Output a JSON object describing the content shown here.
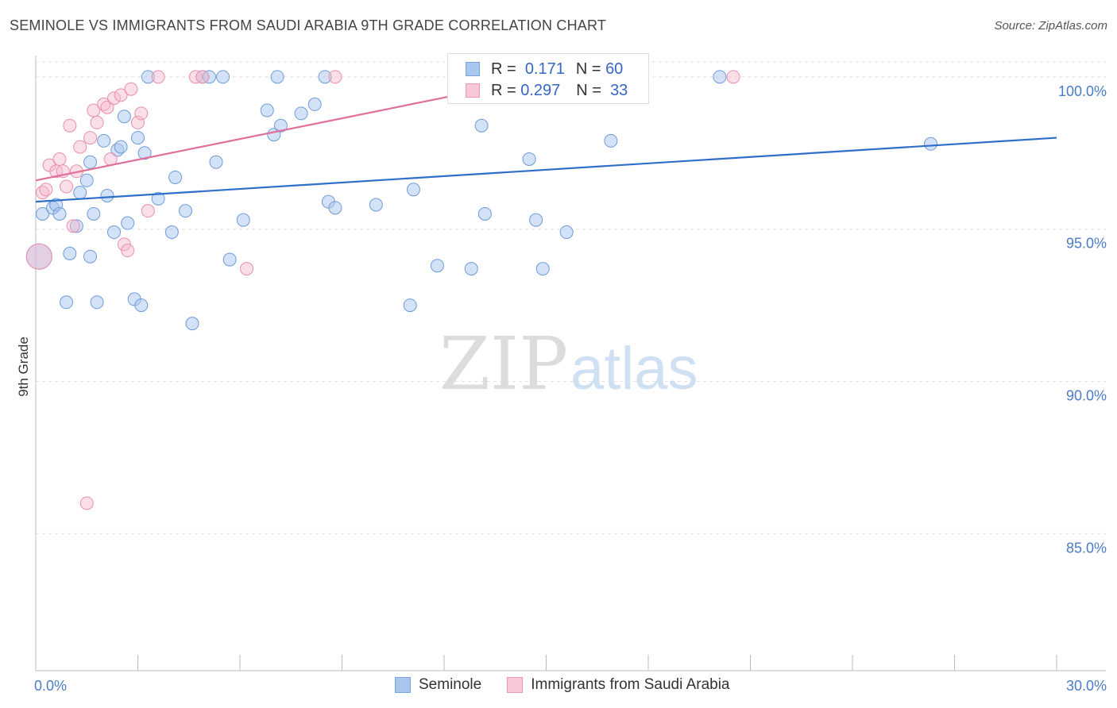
{
  "title": "SEMINOLE VS IMMIGRANTS FROM SAUDI ARABIA 9TH GRADE CORRELATION CHART",
  "source": "Source: ZipAtlas.com",
  "watermark": {
    "zip": "ZIP",
    "atlas": "atlas"
  },
  "legend": {
    "r_label": "R =",
    "n_label": "N =",
    "rows": [
      {
        "r": "0.171",
        "n": "60"
      },
      {
        "r": "0.297",
        "n": "33"
      }
    ]
  },
  "chart_data": {
    "type": "scatter",
    "title": "SEMINOLE VS IMMIGRANTS FROM SAUDI ARABIA 9TH GRADE CORRELATION CHART",
    "ylabel": "9th Grade",
    "xlabel": "",
    "xlim": [
      0,
      30
    ],
    "ylim": [
      80.5,
      100.7
    ],
    "x_ticks": [
      0,
      3,
      6,
      9,
      12,
      15,
      18,
      21,
      24,
      27,
      30
    ],
    "x_tick_labels": [
      {
        "x": 0,
        "label": "0.0%"
      },
      {
        "x": 30,
        "label": "30.0%"
      }
    ],
    "y_ticks": [
      {
        "y": 100,
        "label": "100.0%"
      },
      {
        "y": 95,
        "label": "95.0%"
      },
      {
        "y": 90,
        "label": "90.0%"
      },
      {
        "y": 85,
        "label": "85.0%"
      }
    ],
    "grid": "horizontal dashed",
    "colors": {
      "seminole": "#a9c6ef",
      "seminole_line": "#2f6fc9",
      "saudi": "#f6b8cb",
      "saudi_line": "#e0709a"
    },
    "series": [
      {
        "name": "Seminole",
        "r": 0.171,
        "n": 60,
        "trend": [
          [
            0,
            95.9
          ],
          [
            30,
            98.0
          ]
        ],
        "points": [
          [
            0.1,
            94.1
          ],
          [
            0.2,
            95.5
          ],
          [
            0.5,
            95.7
          ],
          [
            0.6,
            95.8
          ],
          [
            0.7,
            95.5
          ],
          [
            0.9,
            92.6
          ],
          [
            1.0,
            94.2
          ],
          [
            1.2,
            95.1
          ],
          [
            1.3,
            96.2
          ],
          [
            1.5,
            96.6
          ],
          [
            1.6,
            97.2
          ],
          [
            1.7,
            95.5
          ],
          [
            1.8,
            92.6
          ],
          [
            2.0,
            97.9
          ],
          [
            2.1,
            96.1
          ],
          [
            2.3,
            94.9
          ],
          [
            2.4,
            97.6
          ],
          [
            2.5,
            97.7
          ],
          [
            2.6,
            98.7
          ],
          [
            2.7,
            95.2
          ],
          [
            2.9,
            92.7
          ],
          [
            3.0,
            98.0
          ],
          [
            3.1,
            92.5
          ],
          [
            3.2,
            97.5
          ],
          [
            3.3,
            100.0
          ],
          [
            3.6,
            96.0
          ],
          [
            4.0,
            94.9
          ],
          [
            4.1,
            96.7
          ],
          [
            4.4,
            95.6
          ],
          [
            4.6,
            91.9
          ],
          [
            4.9,
            100.0
          ],
          [
            5.1,
            100.0
          ],
          [
            5.3,
            97.2
          ],
          [
            5.5,
            100.0
          ],
          [
            5.7,
            94.0
          ],
          [
            6.1,
            95.3
          ],
          [
            6.8,
            98.9
          ],
          [
            7.1,
            100.0
          ],
          [
            7.0,
            98.1
          ],
          [
            7.2,
            98.4
          ],
          [
            7.8,
            98.8
          ],
          [
            8.2,
            99.1
          ],
          [
            8.5,
            100.0
          ],
          [
            8.6,
            95.9
          ],
          [
            8.8,
            95.7
          ],
          [
            10.0,
            95.8
          ],
          [
            11.0,
            92.5
          ],
          [
            11.1,
            96.3
          ],
          [
            11.8,
            93.8
          ],
          [
            12.8,
            93.7
          ],
          [
            13.1,
            98.4
          ],
          [
            13.2,
            95.5
          ],
          [
            14.5,
            97.3
          ],
          [
            14.7,
            95.3
          ],
          [
            14.9,
            93.7
          ],
          [
            15.6,
            94.9
          ],
          [
            16.9,
            97.9
          ],
          [
            20.1,
            100.0
          ],
          [
            26.3,
            97.8
          ],
          [
            1.6,
            94.1
          ]
        ]
      },
      {
        "name": "Immigrants from Saudi Arabia",
        "r": 0.297,
        "n": 33,
        "trend": [
          [
            0,
            96.6
          ],
          [
            15,
            100.0
          ]
        ],
        "points": [
          [
            0.1,
            94.1
          ],
          [
            0.2,
            96.2
          ],
          [
            0.3,
            96.3
          ],
          [
            0.4,
            97.1
          ],
          [
            0.6,
            96.9
          ],
          [
            0.7,
            97.3
          ],
          [
            0.8,
            96.9
          ],
          [
            0.9,
            96.4
          ],
          [
            1.0,
            98.4
          ],
          [
            1.1,
            95.1
          ],
          [
            1.2,
            96.9
          ],
          [
            1.3,
            97.7
          ],
          [
            1.5,
            86.0
          ],
          [
            1.6,
            98.0
          ],
          [
            1.7,
            98.9
          ],
          [
            1.8,
            98.5
          ],
          [
            2.0,
            99.1
          ],
          [
            2.1,
            99.0
          ],
          [
            2.2,
            97.3
          ],
          [
            2.3,
            99.3
          ],
          [
            2.5,
            99.4
          ],
          [
            2.6,
            94.5
          ],
          [
            2.7,
            94.3
          ],
          [
            2.8,
            99.6
          ],
          [
            3.0,
            98.5
          ],
          [
            3.1,
            98.8
          ],
          [
            3.3,
            95.6
          ],
          [
            3.6,
            100.0
          ],
          [
            4.7,
            100.0
          ],
          [
            4.9,
            100.0
          ],
          [
            6.2,
            93.7
          ],
          [
            8.8,
            100.0
          ],
          [
            20.5,
            100.0
          ]
        ]
      }
    ]
  }
}
